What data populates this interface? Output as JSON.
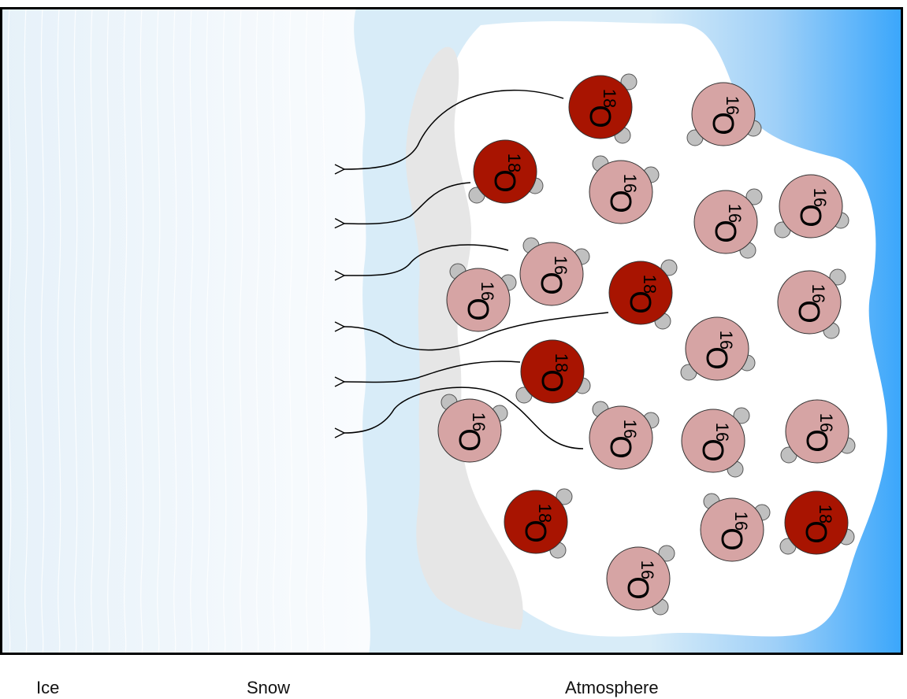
{
  "regions": {
    "ice": "Ice",
    "snow": "Snow",
    "atmosphere": "Atmosphere"
  },
  "isotopes": {
    "heavy": {
      "mass": "18",
      "element": "O",
      "color": "#a81401"
    },
    "light": {
      "mass": "16",
      "element": "O",
      "color": "#d6a4a4"
    }
  },
  "colors": {
    "ice": "#eef6fb",
    "snow": "#d8ecf8",
    "snow_shadow": "#e6e6e6",
    "atmosphere_edge": "#3aa6fb",
    "hydrogen": "#c0c0c0"
  },
  "molecules": [
    {
      "isotope": "heavy",
      "arrow": true
    },
    {
      "isotope": "heavy",
      "arrow": true
    },
    {
      "isotope": "light",
      "arrow": true
    },
    {
      "isotope": "heavy",
      "arrow": true
    },
    {
      "isotope": "heavy",
      "arrow": true
    },
    {
      "isotope": "light",
      "arrow": true
    },
    {
      "isotope": "heavy",
      "arrow": true
    },
    {
      "isotope": "light",
      "arrow": false
    },
    {
      "isotope": "light",
      "arrow": false
    },
    {
      "isotope": "light",
      "arrow": false
    },
    {
      "isotope": "light",
      "arrow": false
    },
    {
      "isotope": "light",
      "arrow": false
    },
    {
      "isotope": "light",
      "arrow": false
    },
    {
      "isotope": "light",
      "arrow": false
    },
    {
      "isotope": "light",
      "arrow": false
    },
    {
      "isotope": "light",
      "arrow": false
    },
    {
      "isotope": "light",
      "arrow": false
    },
    {
      "isotope": "light",
      "arrow": false
    },
    {
      "isotope": "light",
      "arrow": false
    },
    {
      "isotope": "heavy",
      "arrow": false
    },
    {
      "isotope": "light",
      "arrow": false
    }
  ]
}
